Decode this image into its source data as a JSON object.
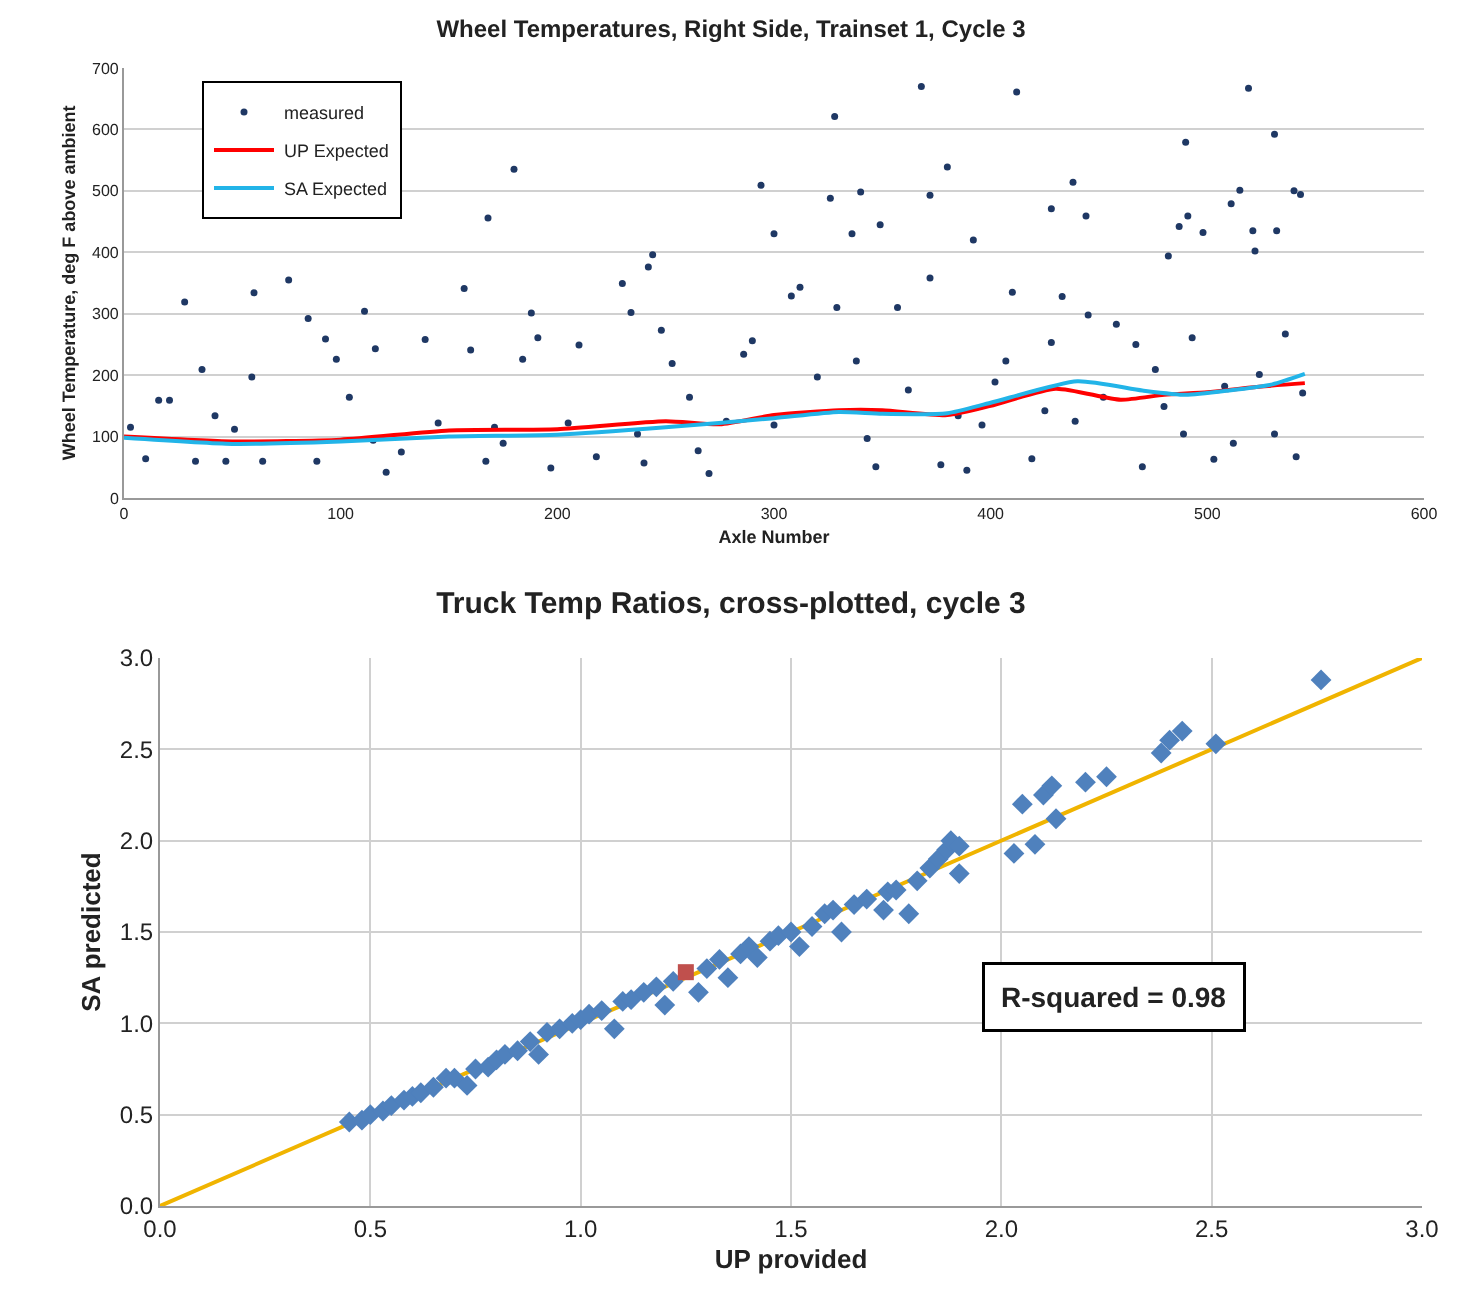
{
  "chart_data": [
    {
      "type": "scatter",
      "title": "Wheel Temperatures, Right Side, Trainset 1, Cycle 3",
      "xlabel": "Axle Number",
      "ylabel": "Wheel Temperature, deg F above ambient",
      "xlim": [
        0,
        600
      ],
      "xticks": [
        0,
        100,
        200,
        300,
        400,
        500,
        600
      ],
      "ylim": [
        0,
        700
      ],
      "yticks": [
        0,
        100,
        200,
        300,
        400,
        500,
        600,
        700
      ],
      "grid": "y",
      "legend": "top left",
      "series": [
        {
          "name": "measured",
          "type": "scatter",
          "marker": "circle",
          "color": "#1f3864",
          "x": [
            168,
            180,
            242,
            244,
            294,
            300,
            326,
            328,
            340,
            336,
            349,
            368,
            372,
            380,
            392,
            412,
            428,
            438,
            444,
            490,
            487,
            491,
            498,
            511,
            515,
            519,
            531,
            521,
            532,
            540,
            543,
            522,
            482,
            3,
            10,
            16,
            21,
            28,
            36,
            33,
            42,
            51,
            60,
            59,
            64,
            76,
            85,
            89,
            93,
            98,
            104,
            111,
            116,
            121,
            128,
            139,
            145,
            157,
            160,
            167,
            171,
            184,
            188,
            191,
            197,
            205,
            210,
            218,
            230,
            234,
            240,
            248,
            253,
            265,
            270,
            278,
            286,
            290,
            300,
            308,
            312,
            320,
            329,
            338,
            347,
            357,
            362,
            372,
            377,
            385,
            396,
            402,
            407,
            410,
            419,
            428,
            433,
            439,
            445,
            452,
            458,
            467,
            470,
            476,
            489,
            493,
            503,
            508,
            512,
            524,
            531,
            536,
            541,
            544,
            47,
            115,
            175,
            237,
            261,
            343,
            389,
            425,
            480
          ],
          "values": [
            456,
            535,
            376,
            396,
            509,
            430,
            488,
            621,
            498,
            430,
            445,
            670,
            493,
            539,
            420,
            661,
            471,
            514,
            459,
            579,
            442,
            459,
            432,
            479,
            501,
            667,
            592,
            435,
            435,
            500,
            494,
            402,
            394,
            115,
            64,
            159,
            159,
            319,
            209,
            60,
            134,
            112,
            334,
            197,
            60,
            355,
            292,
            60,
            259,
            226,
            164,
            304,
            243,
            42,
            75,
            258,
            122,
            341,
            241,
            60,
            115,
            226,
            301,
            261,
            49,
            122,
            249,
            67,
            349,
            302,
            57,
            273,
            219,
            77,
            40,
            125,
            234,
            256,
            119,
            329,
            343,
            197,
            310,
            223,
            51,
            310,
            176,
            358,
            54,
            134,
            119,
            189,
            223,
            335,
            64,
            253,
            328,
            125,
            298,
            164,
            283,
            250,
            51,
            209,
            104,
            261,
            63,
            182,
            89,
            201,
            104,
            267,
            67,
            171,
            60,
            94,
            89,
            104,
            164,
            97,
            45,
            142,
            149
          ]
        },
        {
          "name": "UP Expected",
          "type": "line",
          "marker": "none",
          "color": "#ff0000",
          "x": [
            0,
            50,
            100,
            150,
            200,
            250,
            275,
            300,
            330,
            350,
            380,
            400,
            430,
            460,
            480,
            500,
            520,
            545
          ],
          "values": [
            100,
            92,
            95,
            110,
            112,
            125,
            120,
            135,
            143,
            143,
            135,
            150,
            178,
            160,
            168,
            172,
            180,
            187
          ]
        },
        {
          "name": "SA Expected",
          "type": "line",
          "marker": "none",
          "color": "#22b4e8",
          "x": [
            0,
            50,
            100,
            150,
            200,
            250,
            300,
            330,
            350,
            380,
            400,
            440,
            470,
            490,
            510,
            530,
            545
          ],
          "values": [
            98,
            88,
            92,
            100,
            103,
            115,
            130,
            140,
            137,
            138,
            155,
            190,
            175,
            168,
            175,
            185,
            202
          ]
        }
      ]
    },
    {
      "type": "scatter",
      "title": "Truck Temp Ratios, cross-plotted, cycle 3",
      "xlabel": "UP provided",
      "ylabel": "SA predicted",
      "xlim": [
        0,
        3
      ],
      "xticks": [
        {
          "value": 0,
          "label": "0.0"
        },
        0.5,
        {
          "value": 1,
          "label": "1.0"
        },
        1.5,
        {
          "value": 2,
          "label": "2.0"
        },
        2.5,
        {
          "value": 3,
          "label": "3.0"
        }
      ],
      "ylim": [
        0,
        3
      ],
      "yticks": [
        {
          "value": 0,
          "label": "0.0"
        },
        0.5,
        {
          "value": 1,
          "label": "1.0"
        },
        1.5,
        {
          "value": 2,
          "label": "2.0"
        },
        2.5,
        {
          "value": 3,
          "label": "3.0"
        }
      ],
      "grid": true,
      "legend": false,
      "annotations": [
        "R-squared = 0.98"
      ],
      "series": [
        {
          "type": "line",
          "marker": "none",
          "color": "#f0b400",
          "x": [
            0,
            3
          ],
          "values": [
            0,
            3
          ]
        },
        {
          "type": "scatter",
          "marker": "diamond",
          "color": "#4f81bd",
          "x": [
            0.45,
            0.48,
            0.5,
            0.53,
            0.55,
            0.58,
            0.6,
            0.62,
            0.65,
            0.68,
            0.7,
            0.73,
            0.75,
            0.78,
            0.8,
            0.82,
            0.85,
            0.88,
            0.9,
            0.92,
            0.95,
            0.98,
            1.0,
            1.02,
            1.05,
            1.08,
            1.1,
            1.12,
            1.15,
            1.18,
            1.2,
            1.22,
            1.28,
            1.3,
            1.33,
            1.35,
            1.38,
            1.4,
            1.42,
            1.45,
            1.47,
            1.5,
            1.52,
            1.55,
            1.58,
            1.6,
            1.62,
            1.65,
            1.68,
            1.72,
            1.73,
            1.75,
            1.78,
            1.8,
            1.83,
            1.85,
            1.87,
            1.88,
            1.9,
            1.9,
            2.03,
            2.05,
            2.08,
            2.1,
            2.12,
            2.13,
            2.2,
            2.25,
            2.38,
            2.4,
            2.43,
            2.51,
            2.76
          ],
          "values": [
            0.46,
            0.47,
            0.5,
            0.52,
            0.55,
            0.58,
            0.6,
            0.62,
            0.65,
            0.7,
            0.7,
            0.66,
            0.75,
            0.76,
            0.8,
            0.83,
            0.85,
            0.9,
            0.83,
            0.95,
            0.97,
            1.0,
            1.02,
            1.05,
            1.07,
            0.97,
            1.12,
            1.13,
            1.17,
            1.2,
            1.1,
            1.23,
            1.17,
            1.3,
            1.35,
            1.25,
            1.38,
            1.42,
            1.36,
            1.45,
            1.48,
            1.5,
            1.42,
            1.53,
            1.6,
            1.62,
            1.5,
            1.65,
            1.68,
            1.62,
            1.72,
            1.73,
            1.6,
            1.78,
            1.85,
            1.9,
            1.95,
            2.0,
            1.82,
            1.97,
            1.93,
            2.2,
            1.98,
            2.25,
            2.3,
            2.12,
            2.32,
            2.35,
            2.48,
            2.55,
            2.6,
            2.53,
            2.88
          ]
        },
        {
          "type": "scatter",
          "marker": "square",
          "color": "#c0504d",
          "x": [
            1.25
          ],
          "values": [
            1.28
          ]
        }
      ]
    }
  ]
}
